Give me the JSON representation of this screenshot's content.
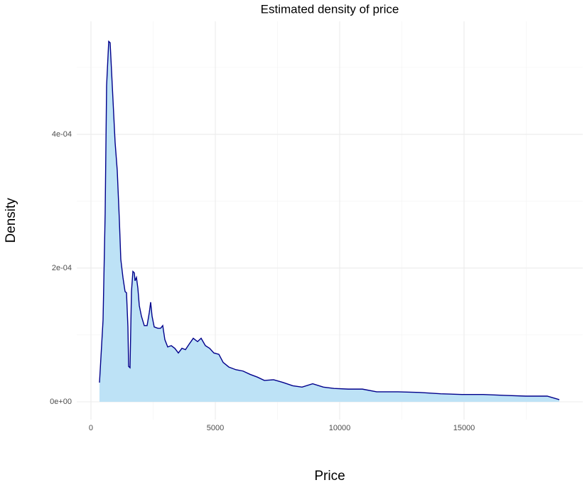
{
  "chart_data": {
    "type": "area",
    "title": "Estimated density of price",
    "x_label": "Price",
    "y_label": "Density",
    "x": [
      343,
      486,
      571,
      629,
      714,
      771,
      857,
      971,
      1057,
      1143,
      1200,
      1286,
      1371,
      1429,
      1486,
      1514,
      1571,
      1629,
      1686,
      1743,
      1771,
      1829,
      1886,
      1943,
      2029,
      2143,
      2257,
      2343,
      2400,
      2457,
      2543,
      2686,
      2800,
      2886,
      2971,
      3086,
      3229,
      3371,
      3514,
      3657,
      3800,
      3943,
      4114,
      4286,
      4429,
      4600,
      4771,
      4943,
      5143,
      5314,
      5543,
      5829,
      6114,
      6400,
      6686,
      6971,
      7343,
      7714,
      8114,
      8486,
      8914,
      9343,
      9771,
      10343,
      10914,
      11486,
      12343,
      13200,
      14057,
      14914,
      15771,
      16629,
      17486,
      18343,
      18829
    ],
    "values": [
      2.87e-05,
      0.000122,
      0.000282,
      0.000473,
      0.000539,
      0.000537,
      0.000473,
      0.000388,
      0.000346,
      0.000271,
      0.000213,
      0.000186,
      0.000165,
      0.000163,
      0.000112,
      5.3e-05,
      5.1e-05,
      0.000165,
      0.000195,
      0.000193,
      0.000181,
      0.000186,
      0.00017,
      0.000144,
      0.000128,
      0.000114,
      0.000114,
      0.000133,
      0.000149,
      0.000128,
      0.000112,
      0.00011,
      0.00011,
      0.000114,
      9.3e-05,
      8.2e-05,
      8.4e-05,
      8e-05,
      7.3e-05,
      8e-05,
      7.8e-05,
      8.6e-05,
      9.5e-05,
      9e-05,
      9.5e-05,
      8.4e-05,
      8e-05,
      7.3e-05,
      7.1e-05,
      5.9e-05,
      5.2e-05,
      4.8e-05,
      4.6e-05,
      4.1e-05,
      3.7e-05,
      3.2e-05,
      3.3e-05,
      2.9e-05,
      2.4e-05,
      2.2e-05,
      2.7e-05,
      2.2e-05,
      2e-05,
      1.9e-05,
      1.9e-05,
      1.5e-05,
      1.5e-05,
      1.4e-05,
      1.2e-05,
      1.1e-05,
      1.1e-05,
      9.6e-06,
      8.5e-06,
      8.5e-06,
      3.2e-06
    ],
    "line_color": "#00008b",
    "fill_color": "#bde2f6",
    "xlim": [
      -571,
      19771
    ],
    "ylim": [
      -2.66e-05,
      0.000569
    ],
    "xticks": [
      0,
      5000,
      10000,
      15000
    ],
    "yticks": [
      {
        "value": 0,
        "label": "0e+00"
      },
      {
        "value": 0.0002,
        "label": "2e-04"
      },
      {
        "value": 0.0004,
        "label": "4e-04"
      }
    ],
    "grid": true,
    "minor_grid": true
  }
}
